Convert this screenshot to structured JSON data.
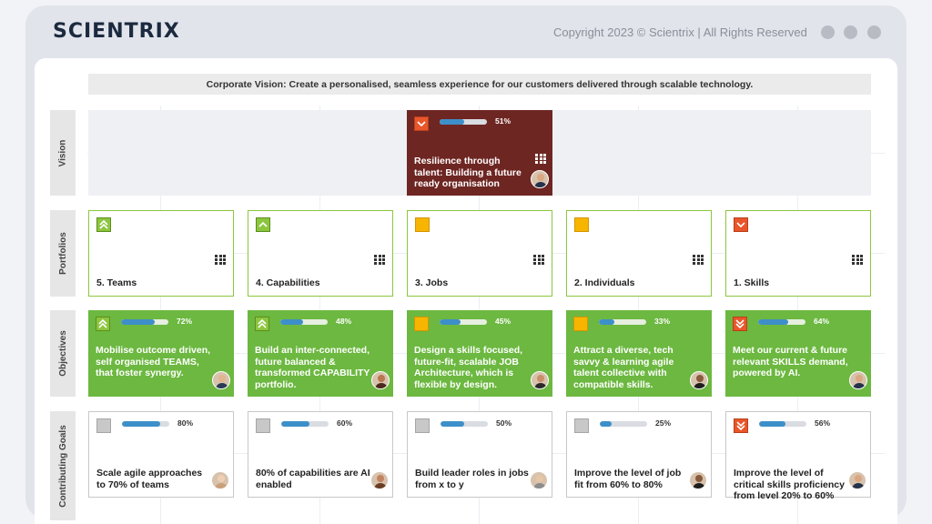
{
  "header": {
    "logo": "SCIENTRIX",
    "copyright": "Copyright 2023 © Scientrix | All Rights Reserved"
  },
  "window_controls": [
    "dot",
    "dot",
    "dot"
  ],
  "corporate_vision": "Corporate Vision: Create a personalised, seamless experience for our customers delivered through scalable technology.",
  "rows": {
    "vision": "Vision",
    "portfolios": "Portfolios",
    "objectives": "Objectives",
    "goals": "Contributing Goals"
  },
  "vision_card": {
    "status": "down",
    "progress": 51,
    "progress_label": "51%",
    "title": "Resilience through talent: Building a future ready organisation",
    "avatar": "avatar-man-suit"
  },
  "portfolios": [
    {
      "status": "double-up",
      "title": "5. Teams"
    },
    {
      "status": "up",
      "title": "4. Capabilities"
    },
    {
      "status": "amber",
      "title": "3. Jobs"
    },
    {
      "status": "amber",
      "title": "2. Individuals"
    },
    {
      "status": "down",
      "title": "1. Skills"
    }
  ],
  "objectives": [
    {
      "status": "double-up",
      "progress": 72,
      "progress_label": "72%",
      "title": "Mobilise outcome driven, self organised TEAMS, that foster synergy.",
      "avatar": "avatar-man"
    },
    {
      "status": "double-up",
      "progress": 48,
      "progress_label": "48%",
      "title": "Build an inter-connected, future balanced & transformed CAPABILITY portfolio.",
      "avatar": "avatar-woman"
    },
    {
      "status": "amber",
      "progress": 45,
      "progress_label": "45%",
      "title": "Design a skills focused, future-fit, scalable JOB Architecture, which is flexible by design.",
      "avatar": "avatar-man-bald"
    },
    {
      "status": "amber",
      "progress": 33,
      "progress_label": "33%",
      "title": "Attract a diverse, tech savvy & learning agile talent collective with compatible skills.",
      "avatar": "avatar-woman-dark"
    },
    {
      "status": "double-down",
      "progress": 64,
      "progress_label": "64%",
      "title": "Meet our current & future relevant SKILLS demand, powered by AI.",
      "avatar": "avatar-man-suit"
    }
  ],
  "goals": [
    {
      "status": "grey",
      "progress": 80,
      "progress_label": "80%",
      "title": "Scale agile approaches to 70% of teams",
      "avatar": "avatar-woman-light"
    },
    {
      "status": "grey",
      "progress": 60,
      "progress_label": "60%",
      "title": "80% of capabilities are AI enabled",
      "avatar": "avatar-woman-curly"
    },
    {
      "status": "grey",
      "progress": 50,
      "progress_label": "50%",
      "title": "Build leader roles in jobs from x to y",
      "avatar": "avatar-man-grey"
    },
    {
      "status": "grey",
      "progress": 25,
      "progress_label": "25%",
      "title": "Improve the level of job fit from 60% to 80%",
      "avatar": "avatar-woman-dark"
    },
    {
      "status": "double-down",
      "progress": 56,
      "progress_label": "56%",
      "title": "Improve the level of critical skills proficiency from level 20% to 60%",
      "avatar": "avatar-man-suit"
    }
  ],
  "colors": {
    "vision_card": "#6e2622",
    "objective": "#6cb840",
    "portfolio_border": "#8cc63f",
    "progress_fill": "#3d8fc9",
    "status_up": "#8cc63f",
    "status_amber": "#f7b500",
    "status_down": "#e8562a",
    "status_grey": "#c8c8c8"
  }
}
